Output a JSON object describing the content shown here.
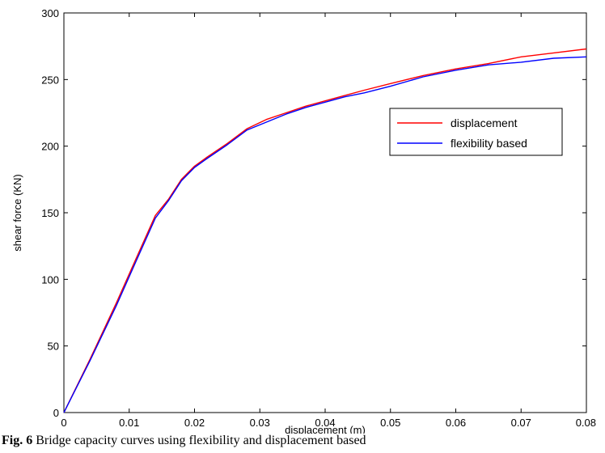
{
  "caption": {
    "prefix": "Fig. 6",
    "text": " Bridge capacity curves using flexibility and displacement based"
  },
  "chart_data": {
    "type": "line",
    "title": "",
    "xlabel": "displacement (m)",
    "ylabel": "shear force (KN)",
    "xlim": [
      0,
      0.08
    ],
    "ylim": [
      0,
      300
    ],
    "xticks": [
      0,
      0.01,
      0.02,
      0.03,
      0.04,
      0.05,
      0.06,
      0.07,
      0.08
    ],
    "xtick_labels": [
      "0",
      "0.01",
      "0.02",
      "0.03",
      "0.04",
      "0.05",
      "0.06",
      "0.07",
      "0.08"
    ],
    "yticks": [
      0,
      50,
      100,
      150,
      200,
      250,
      300
    ],
    "ytick_labels": [
      "0",
      "50",
      "100",
      "150",
      "200",
      "250",
      "300"
    ],
    "grid": false,
    "legend_position": "upper-right-inside",
    "series": [
      {
        "name": "displacement",
        "color": "#ff0000",
        "x": [
          0,
          0.004,
          0.008,
          0.011,
          0.014,
          0.016,
          0.018,
          0.02,
          0.022,
          0.025,
          0.028,
          0.031,
          0.034,
          0.037,
          0.04,
          0.043,
          0.046,
          0.05,
          0.055,
          0.06,
          0.065,
          0.07,
          0.075,
          0.08
        ],
        "y": [
          0,
          40,
          82,
          115,
          148,
          160,
          175,
          185,
          192,
          202,
          213,
          220,
          225,
          230,
          234,
          238,
          242,
          247,
          253,
          258,
          262,
          267,
          270,
          273
        ]
      },
      {
        "name": "flexibility based",
        "color": "#0000ff",
        "x": [
          0,
          0.004,
          0.008,
          0.011,
          0.014,
          0.016,
          0.018,
          0.02,
          0.022,
          0.025,
          0.028,
          0.031,
          0.034,
          0.037,
          0.04,
          0.043,
          0.046,
          0.05,
          0.055,
          0.06,
          0.065,
          0.07,
          0.075,
          0.08
        ],
        "y": [
          0,
          39,
          80,
          113,
          146,
          159,
          174,
          184,
          191,
          201,
          212,
          218,
          224,
          229,
          233,
          237,
          240,
          245,
          252,
          257,
          261,
          263,
          266,
          267
        ]
      }
    ]
  }
}
